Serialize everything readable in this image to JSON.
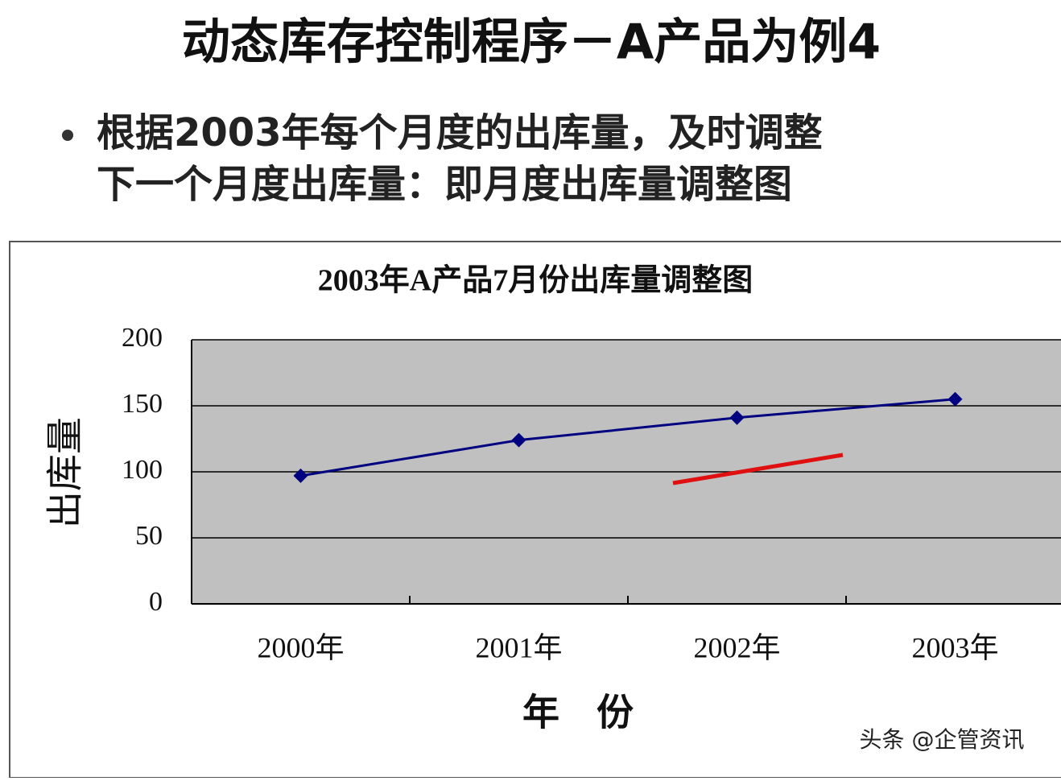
{
  "slide": {
    "title": "动态库存控制程序－A产品为例4",
    "bullet": [
      "根据2003年每个月度的出库量，及时调整",
      "下一个月度出库量：即月度出库量调整图"
    ],
    "watermark": "头条 @企管资讯"
  },
  "chart_data": {
    "type": "line",
    "title": "2003年A产品7月份出库量调整图",
    "x_label": "年　份",
    "y_label": "出库量",
    "categories": [
      "2000年",
      "2001年",
      "2002年",
      "2003年"
    ],
    "values": [
      97,
      124,
      141,
      155
    ],
    "color": "#000080",
    "ylim": [
      0,
      200
    ],
    "yticks": [
      0,
      50,
      100,
      150,
      200
    ],
    "grid": true
  }
}
